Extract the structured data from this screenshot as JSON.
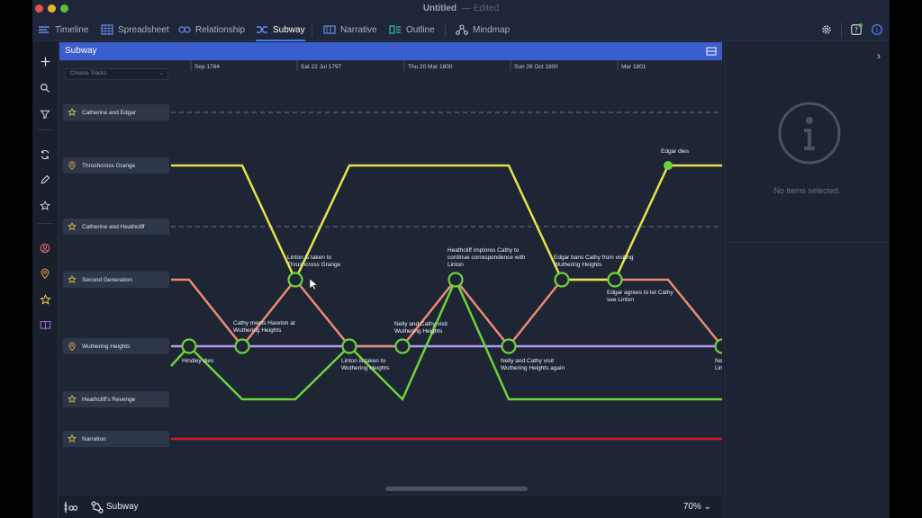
{
  "window": {
    "title": "Untitled",
    "edited": "— Edited"
  },
  "toolbar": {
    "tabs": [
      {
        "label": "Timeline",
        "icon": "timeline-icon"
      },
      {
        "label": "Spreadsheet",
        "icon": "spreadsheet-icon"
      },
      {
        "label": "Relationship",
        "icon": "relationship-icon"
      },
      {
        "label": "Subway",
        "icon": "subway-icon",
        "active": true
      },
      {
        "label": "Narrative",
        "icon": "narrative-icon"
      },
      {
        "label": "Outline",
        "icon": "outline-icon"
      },
      {
        "label": "Mindmap",
        "icon": "mindmap-icon"
      }
    ],
    "right_icons": [
      "settings-gear-icon",
      "help-icon",
      "info-icon"
    ]
  },
  "sidebar": {
    "icons": [
      "add-icon",
      "search-icon",
      "filter-icon",
      "refresh-icon",
      "pencil-icon",
      "pin-star-icon",
      "character-icon",
      "place-icon",
      "star-icon",
      "book-icon"
    ]
  },
  "panel": {
    "title": "Subway",
    "choose_tracks_placeholder": "Choose Tracks",
    "dates": [
      "Sep 1784",
      "Sat 22 Jul 1797",
      "Thu 20 Mar 1800",
      "Sun 26 Oct 1800",
      "Mar 1801"
    ],
    "tracks": [
      {
        "label": "Catherine and Edgar",
        "icon": "star-icon"
      },
      {
        "label": "Thrushcross Grange",
        "icon": "place-icon"
      },
      {
        "label": "Catherine and Heathcliff",
        "icon": "star-icon"
      },
      {
        "label": "Second Generation",
        "icon": "star-icon"
      },
      {
        "label": "Wuthering Heights",
        "icon": "place-icon"
      },
      {
        "label": "Heathcliff's Revenge",
        "icon": "star-icon"
      },
      {
        "label": "Narration",
        "icon": "star-icon"
      }
    ],
    "events": [
      {
        "label": "Hindley dies"
      },
      {
        "label": "Cathy meets Hareton at Wuthering Heights"
      },
      {
        "label": "Linton is taken to Thrushcross Grange"
      },
      {
        "label": "Linton is taken to Wuthering Heights"
      },
      {
        "label": "Nelly and Cathy visit Wuthering Heights"
      },
      {
        "label": "Heathcliff implores Cathy to continue correspondence with Linton"
      },
      {
        "label": "Nelly and Cathy visit Wuthering Heights again"
      },
      {
        "label": "Edgar bans Cathy from visiting Wuthering Heights"
      },
      {
        "label": "Edgar agrees to let Cathy see Linton"
      },
      {
        "label": "Edgar dies"
      },
      {
        "label": "Ne Lin"
      }
    ],
    "colors": {
      "yellow": "#e8e24a",
      "salmon": "#e98a73",
      "purple": "#b89bf0",
      "green": "#6ed23a",
      "red": "#d6182a",
      "dashed": "#5a6172"
    }
  },
  "bottom": {
    "view_label": "Subway",
    "zoom": "70%"
  },
  "inspector": {
    "empty_text": "No items selected."
  }
}
